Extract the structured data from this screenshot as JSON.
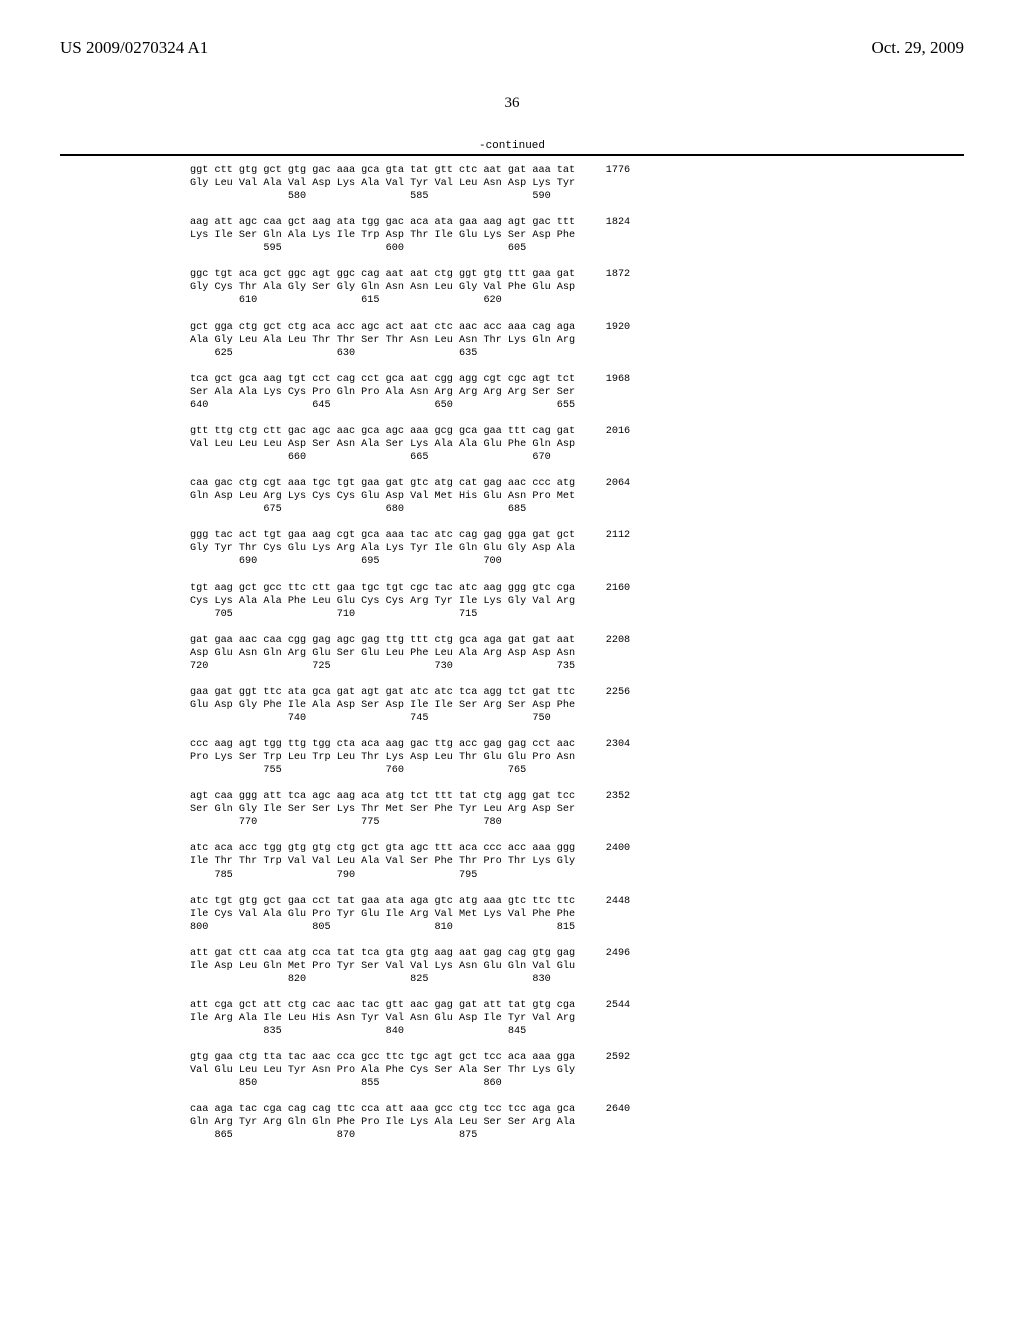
{
  "header": {
    "left": "US 2009/0270324 A1",
    "right": "Oct. 29, 2009"
  },
  "pageNumber": "36",
  "continued": "-continued",
  "sequence": "ggt ctt gtg gct gtg gac aaa gca gta tat gtt ctc aat gat aaa tat     1776\nGly Leu Val Ala Val Asp Lys Ala Val Tyr Val Leu Asn Asp Lys Tyr\n                580                 585                 590\n\naag att agc caa gct aag ata tgg gac aca ata gaa aag agt gac ttt     1824\nLys Ile Ser Gln Ala Lys Ile Trp Asp Thr Ile Glu Lys Ser Asp Phe\n            595                 600                 605\n\nggc tgt aca gct ggc agt ggc cag aat aat ctg ggt gtg ttt gaa gat     1872\nGly Cys Thr Ala Gly Ser Gly Gln Asn Asn Leu Gly Val Phe Glu Asp\n        610                 615                 620\n\ngct gga ctg gct ctg aca acc agc act aat ctc aac acc aaa cag aga     1920\nAla Gly Leu Ala Leu Thr Thr Ser Thr Asn Leu Asn Thr Lys Gln Arg\n    625                 630                 635\n\ntca gct gca aag tgt cct cag cct gca aat cgg agg cgt cgc agt tct     1968\nSer Ala Ala Lys Cys Pro Gln Pro Ala Asn Arg Arg Arg Arg Ser Ser\n640                 645                 650                 655\n\ngtt ttg ctg ctt gac agc aac gca agc aaa gcg gca gaa ttt cag gat     2016\nVal Leu Leu Leu Asp Ser Asn Ala Ser Lys Ala Ala Glu Phe Gln Asp\n                660                 665                 670\n\ncaa gac ctg cgt aaa tgc tgt gaa gat gtc atg cat gag aac ccc atg     2064\nGln Asp Leu Arg Lys Cys Cys Glu Asp Val Met His Glu Asn Pro Met\n            675                 680                 685\n\nggg tac act tgt gaa aag cgt gca aaa tac atc cag gag gga gat gct     2112\nGly Tyr Thr Cys Glu Lys Arg Ala Lys Tyr Ile Gln Glu Gly Asp Ala\n        690                 695                 700\n\ntgt aag gct gcc ttc ctt gaa tgc tgt cgc tac atc aag ggg gtc cga     2160\nCys Lys Ala Ala Phe Leu Glu Cys Cys Arg Tyr Ile Lys Gly Val Arg\n    705                 710                 715\n\ngat gaa aac caa cgg gag agc gag ttg ttt ctg gca aga gat gat aat     2208\nAsp Glu Asn Gln Arg Glu Ser Glu Leu Phe Leu Ala Arg Asp Asp Asn\n720                 725                 730                 735\n\ngaa gat ggt ttc ata gca gat agt gat atc atc tca agg tct gat ttc     2256\nGlu Asp Gly Phe Ile Ala Asp Ser Asp Ile Ile Ser Arg Ser Asp Phe\n                740                 745                 750\n\nccc aag agt tgg ttg tgg cta aca aag gac ttg acc gag gag cct aac     2304\nPro Lys Ser Trp Leu Trp Leu Thr Lys Asp Leu Thr Glu Glu Pro Asn\n            755                 760                 765\n\nagt caa ggg att tca agc aag aca atg tct ttt tat ctg agg gat tcc     2352\nSer Gln Gly Ile Ser Ser Lys Thr Met Ser Phe Tyr Leu Arg Asp Ser\n        770                 775                 780\n\natc aca acc tgg gtg gtg ctg gct gta agc ttt aca ccc acc aaa ggg     2400\nIle Thr Thr Trp Val Val Leu Ala Val Ser Phe Thr Pro Thr Lys Gly\n    785                 790                 795\n\natc tgt gtg gct gaa cct tat gaa ata aga gtc atg aaa gtc ttc ttc     2448\nIle Cys Val Ala Glu Pro Tyr Glu Ile Arg Val Met Lys Val Phe Phe\n800                 805                 810                 815\n\natt gat ctt caa atg cca tat tca gta gtg aag aat gag cag gtg gag     2496\nIle Asp Leu Gln Met Pro Tyr Ser Val Val Lys Asn Glu Gln Val Glu\n                820                 825                 830\n\natt cga gct att ctg cac aac tac gtt aac gag gat att tat gtg cga     2544\nIle Arg Ala Ile Leu His Asn Tyr Val Asn Glu Asp Ile Tyr Val Arg\n            835                 840                 845\n\ngtg gaa ctg tta tac aac cca gcc ttc tgc agt gct tcc aca aaa gga     2592\nVal Glu Leu Leu Tyr Asn Pro Ala Phe Cys Ser Ala Ser Thr Lys Gly\n        850                 855                 860\n\ncaa aga tac cga cag cag ttc cca att aaa gcc ctg tcc tcc aga gca     2640\nGln Arg Tyr Arg Gln Gln Phe Pro Ile Lys Ala Leu Ser Ser Arg Ala\n    865                 870                 875"
}
